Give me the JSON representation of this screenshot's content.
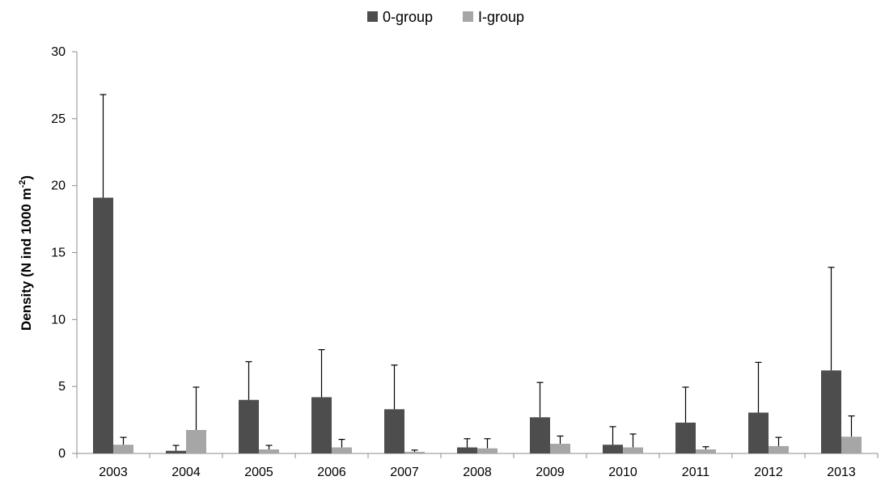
{
  "chart_data": {
    "type": "bar",
    "categories": [
      "2003",
      "2004",
      "2005",
      "2006",
      "2007",
      "2008",
      "2009",
      "2010",
      "2011",
      "2012",
      "2013"
    ],
    "series": [
      {
        "name": "0-group",
        "color": "#4d4d4d",
        "values": [
          19.1,
          0.2,
          4.0,
          4.2,
          3.3,
          0.45,
          2.7,
          0.65,
          2.3,
          3.05,
          6.2
        ],
        "error_upper": [
          26.8,
          0.6,
          6.85,
          7.75,
          6.6,
          1.1,
          5.3,
          2.0,
          4.95,
          6.8,
          13.9
        ]
      },
      {
        "name": "I-group",
        "color": "#a6a6a6",
        "values": [
          0.65,
          1.75,
          0.3,
          0.45,
          0.12,
          0.38,
          0.72,
          0.45,
          0.3,
          0.55,
          1.25
        ],
        "error_upper": [
          1.2,
          4.95,
          0.6,
          1.05,
          0.25,
          1.1,
          1.3,
          1.45,
          0.5,
          1.2,
          2.8
        ]
      }
    ],
    "title": "",
    "xlabel": "",
    "ylabel": "Density (N ind 1000 m",
    "ylabel_superscript": "-2",
    "ylabel_close": ")",
    "ylim": [
      0,
      30
    ],
    "yticks": [
      "0",
      "5",
      "10",
      "15",
      "20",
      "25",
      "30"
    ],
    "legend_position": "top-center",
    "grid": false
  }
}
